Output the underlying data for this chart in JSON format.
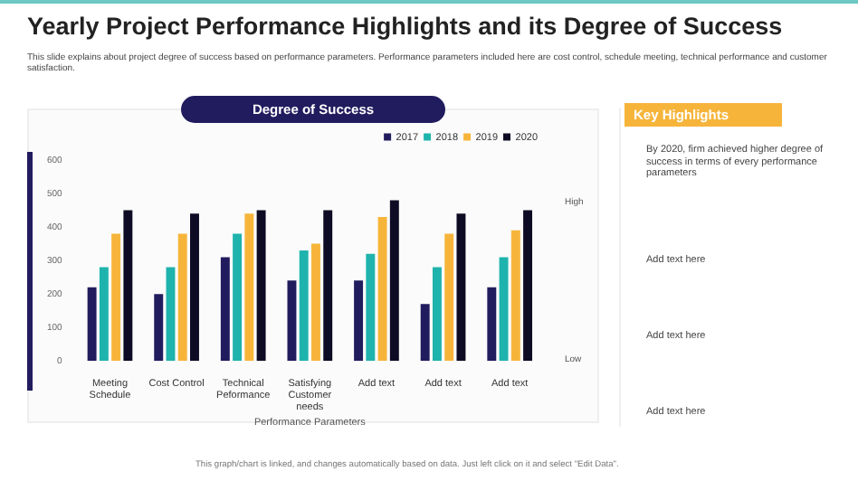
{
  "chart_data": {
    "type": "bar",
    "title": "Yearly Project Performance Highlights and its Degree of Success",
    "subtitle": "This slide explains about project degree of success based on performance  parameters. Performance parameters included here are cost control, schedule meeting, technical performance and customer satisfaction.",
    "xlabel": "Performance Parameters",
    "categories": [
      "Meeting Schedule",
      "Cost Control",
      "Technical Peformance",
      "Satisfying Customer needs",
      "Add text",
      "Add text",
      "Add text"
    ],
    "series": [
      {
        "name": "2017",
        "color": "#211c5e",
        "values": [
          220,
          200,
          310,
          240,
          240,
          170,
          220
        ]
      },
      {
        "name": "2018",
        "color": "#1fb3ad",
        "values": [
          280,
          280,
          380,
          330,
          320,
          280,
          310
        ]
      },
      {
        "name": "2019",
        "color": "#f6b53a",
        "values": [
          380,
          380,
          440,
          350,
          430,
          380,
          390
        ]
      },
      {
        "name": "2020",
        "color": "#0e0c24",
        "values": [
          450,
          440,
          450,
          450,
          480,
          440,
          450
        ]
      }
    ],
    "ylim": [
      0,
      600
    ],
    "yticks": [
      0,
      100,
      200,
      300,
      400,
      500,
      600
    ],
    "grid": false,
    "legend": "top right",
    "annotations": [
      "Degree of Success",
      "High",
      "Low",
      "Key Highlights",
      "By 2020, firm achieved higher degree of success in terms of every performance parameters",
      "Add text here",
      "Add text here",
      "Add text here",
      "This graph/chart is linked, and changes automatically based on data. Just left click on it and select \"Edit Data\"."
    ]
  }
}
